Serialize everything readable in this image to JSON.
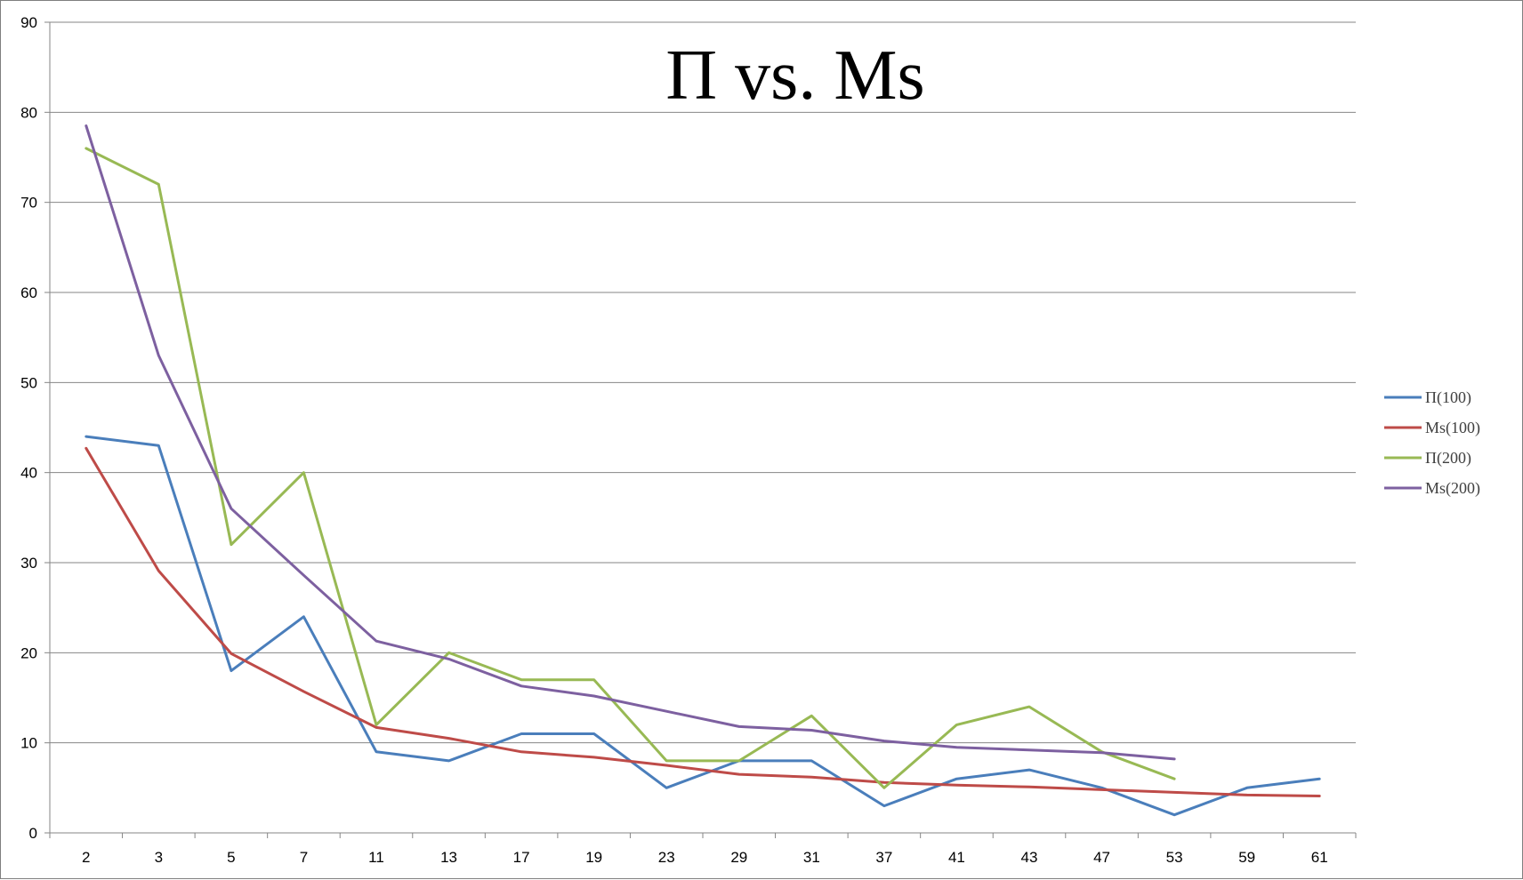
{
  "chart_data": {
    "type": "line",
    "title": "Π vs. Ms",
    "xlabel": "",
    "ylabel": "",
    "categories": [
      "2",
      "3",
      "5",
      "7",
      "11",
      "13",
      "17",
      "19",
      "23",
      "29",
      "31",
      "37",
      "41",
      "43",
      "47",
      "53",
      "59",
      "61"
    ],
    "ylim": [
      0,
      90
    ],
    "yticks": [
      0,
      10,
      20,
      30,
      40,
      50,
      60,
      70,
      80,
      90
    ],
    "grid": "horizontal",
    "legend_position": "right",
    "series": [
      {
        "name": "Π(100)",
        "color": "#4a7ebb",
        "values": [
          44,
          43,
          18,
          24,
          9,
          8,
          11,
          11,
          5,
          8,
          8,
          3,
          6,
          7,
          5,
          2,
          5,
          6
        ]
      },
      {
        "name": "Ms(100)",
        "color": "#be4b48",
        "values": [
          42.7,
          29.1,
          19.9,
          15.7,
          11.7,
          10.5,
          9.0,
          8.4,
          7.5,
          6.5,
          6.2,
          5.6,
          5.3,
          5.1,
          4.8,
          4.5,
          4.2,
          4.1
        ]
      },
      {
        "name": "Π(200)",
        "color": "#98b954",
        "values": [
          76,
          72,
          32,
          40,
          12,
          20,
          17,
          17,
          8,
          8,
          13,
          5,
          12,
          14,
          9,
          6,
          null,
          null
        ]
      },
      {
        "name": "Ms(200)",
        "color": "#7d60a0",
        "values": [
          78.5,
          53,
          36,
          28.6,
          21.3,
          19.3,
          16.3,
          15.2,
          13.5,
          11.8,
          11.4,
          10.2,
          9.5,
          9.2,
          8.9,
          8.2,
          null,
          null
        ]
      }
    ]
  }
}
